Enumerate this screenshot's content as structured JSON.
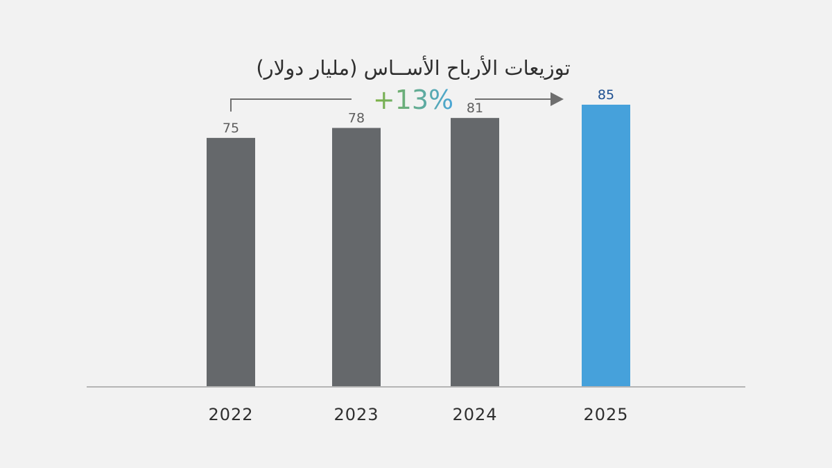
{
  "chart_data": {
    "type": "bar",
    "title": "توزيعات الأرباح الأســاس (مليار دولار)",
    "categories": [
      "2022",
      "2023",
      "2024",
      "2025"
    ],
    "values": [
      75,
      78,
      81,
      85
    ],
    "ylim": [
      0,
      85
    ],
    "xlabel": "",
    "ylabel": "",
    "grid": false,
    "highlight_category": "2025",
    "annotation": {
      "text": "+13%",
      "from": "2022",
      "to": "2025"
    }
  },
  "colors": {
    "background": "#f2f2f2",
    "bar": "#65686b",
    "bar_highlight": "#46a1db",
    "value_label": "#5e5e5e",
    "value_label_highlight": "#1d4f91",
    "axis": "#b5b5b5",
    "connector": "#6e6e6e",
    "growth_green": "#7fb241",
    "growth_blue": "#4aa6d8"
  }
}
